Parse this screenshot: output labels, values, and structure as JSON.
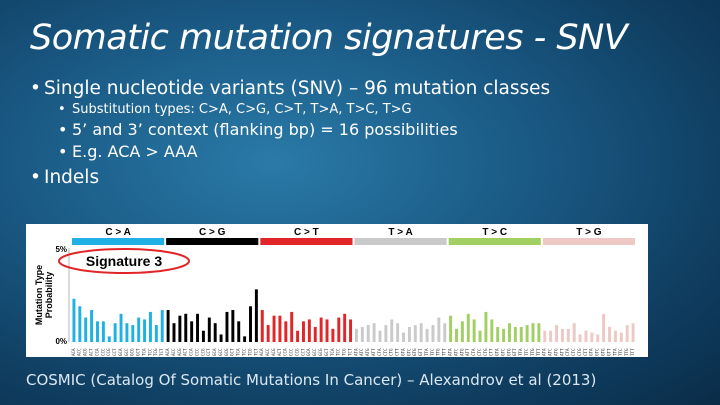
{
  "slide": {
    "title": "Somatic mutation signatures - SNV",
    "bullets": {
      "snv": "Single nucleotide variants (SNV) – 96 mutation classes",
      "substitution": "Substitution types: C>A, C>G, C>T, T>A, T>C, T>G",
      "context": "5’ and 3’ context (flanking bp) = 16 possibilities",
      "example": "E.g. ACA > AAA",
      "indels": "Indels"
    },
    "footer": "COSMIC (Catalog Of Somatic Mutations In Cancer) – Alexandrov et al (2013)"
  },
  "chart_data": {
    "type": "bar",
    "title": "Signature 3",
    "ylabel": "Mutation Type Probability",
    "yticks": [
      "5%",
      "0%"
    ],
    "ylim": [
      0,
      5
    ],
    "groups": [
      {
        "name": "C > A",
        "color": "#1fb1e6"
      },
      {
        "name": "C > G",
        "color": "#000000"
      },
      {
        "name": "C > T",
        "color": "#e22526"
      },
      {
        "name": "T > A",
        "color": "#cacaca"
      },
      {
        "name": "T > C",
        "color": "#a1cf64"
      },
      {
        "name": "T > G",
        "color": "#edc8c5"
      }
    ],
    "contexts": [
      "A_A",
      "A_C",
      "A_G",
      "A_T",
      "C_A",
      "C_C",
      "C_G",
      "C_T",
      "G_A",
      "G_C",
      "G_G",
      "G_T",
      "T_A",
      "T_C",
      "T_G",
      "T_T"
    ],
    "series": [
      {
        "values": [
          2.3,
          1.9,
          1.3,
          1.7,
          1.1,
          1.1,
          0.3,
          1.0,
          1.5,
          1.0,
          0.9,
          1.3,
          1.2,
          1.6,
          0.9,
          1.7,
          1.7,
          1.0,
          1.4,
          1.5,
          1.1,
          1.5,
          0.6,
          1.3,
          1.0,
          0.4,
          1.6,
          1.7,
          1.1,
          0.3,
          1.9,
          2.8,
          1.7,
          0.9,
          1.4,
          1.4,
          1.1,
          1.6,
          0.6,
          1.1,
          1.2,
          0.8,
          1.3,
          1.2,
          0.7,
          1.3,
          1.5,
          1.2,
          0.7,
          0.8,
          0.9,
          1.0,
          0.6,
          0.9,
          1.2,
          1.0,
          0.5,
          0.8,
          0.9,
          1.0,
          0.7,
          0.9,
          1.3,
          1.0,
          1.4,
          0.7,
          1.1,
          1.5,
          1.2,
          0.6,
          1.6,
          1.2,
          0.8,
          0.7,
          1.0,
          0.8,
          0.8,
          0.9,
          1.0,
          1.0,
          0.6,
          0.6,
          0.9,
          0.7,
          0.7,
          1.0,
          0.4,
          0.6,
          0.5,
          0.4,
          1.5,
          0.8,
          0.6,
          0.5,
          0.9,
          1.0
        ]
      }
    ]
  }
}
